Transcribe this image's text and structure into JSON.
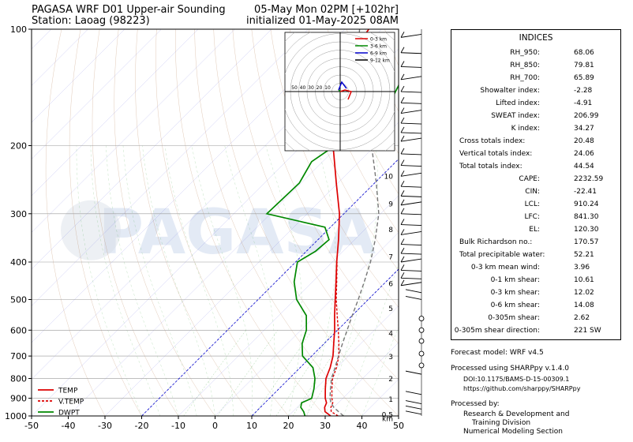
{
  "header": {
    "title_left_1": "PAGASA WRF D01 Upper-air Sounding",
    "title_left_2": "Station: Laoag (98223)",
    "title_right_1": "05-May Mon 02PM [+102hr]",
    "title_right_2": "initialized 01-May-2025 08AM"
  },
  "watermark": "PAGASA",
  "chart_data": {
    "type": "line",
    "xlabel": "",
    "ylabel": "",
    "xlim": [
      -50,
      50
    ],
    "ylim": [
      1000,
      100
    ],
    "yscale": "log",
    "x_ticks": [
      -50,
      -40,
      -30,
      -20,
      -10,
      0,
      10,
      20,
      30,
      40,
      50
    ],
    "y_ticks": [
      1000,
      900,
      800,
      700,
      600,
      500,
      400,
      300,
      200,
      100
    ],
    "height_km_labels": [
      "km",
      "0.5",
      "1",
      "2",
      "3",
      "4",
      "5",
      "6",
      "7",
      "8",
      "9",
      "10"
    ],
    "legend_position": "bottom-left",
    "series": [
      {
        "name": "TEMP",
        "color": "#dd0000",
        "style": "solid",
        "points": [
          [
            1000,
            31.5
          ],
          [
            975,
            28.8
          ],
          [
            950,
            27.5
          ],
          [
            925,
            26.8
          ],
          [
            900,
            25.2
          ],
          [
            850,
            22.6
          ],
          [
            800,
            20.0
          ],
          [
            750,
            18.2
          ],
          [
            700,
            15.8
          ],
          [
            650,
            12.6
          ],
          [
            600,
            9.2
          ],
          [
            550,
            5.2
          ],
          [
            500,
            1.0
          ],
          [
            450,
            -3.6
          ],
          [
            400,
            -8.8
          ],
          [
            350,
            -14.4
          ],
          [
            300,
            -21.2
          ],
          [
            250,
            -30.4
          ],
          [
            200,
            -41.5
          ],
          [
            175,
            -47.5
          ],
          [
            150,
            -54.5
          ],
          [
            125,
            -60.0
          ],
          [
            110,
            -62.0
          ],
          [
            100,
            -63.5
          ]
        ]
      },
      {
        "name": "V.TEMP",
        "color": "#dd0000",
        "style": "dashed",
        "points": [
          [
            1000,
            33.5
          ],
          [
            975,
            30.5
          ],
          [
            950,
            29.2
          ],
          [
            925,
            28.5
          ],
          [
            900,
            27.0
          ],
          [
            850,
            24.4
          ],
          [
            800,
            21.8
          ],
          [
            750,
            19.9
          ],
          [
            700,
            17.4
          ],
          [
            650,
            14.0
          ],
          [
            600,
            10.2
          ],
          [
            550,
            5.9
          ],
          [
            500,
            1.3
          ],
          [
            450,
            -3.4
          ],
          [
            400,
            -8.7
          ]
        ]
      },
      {
        "name": "DWPT",
        "color": "#008800",
        "style": "solid",
        "points": [
          [
            1000,
            24.5
          ],
          [
            975,
            23.0
          ],
          [
            950,
            21.0
          ],
          [
            925,
            20.0
          ],
          [
            900,
            21.5
          ],
          [
            850,
            19.5
          ],
          [
            800,
            17.0
          ],
          [
            750,
            13.5
          ],
          [
            700,
            7.5
          ],
          [
            650,
            4.0
          ],
          [
            600,
            1.5
          ],
          [
            550,
            -2.5
          ],
          [
            500,
            -9.5
          ],
          [
            450,
            -15.0
          ],
          [
            400,
            -19.5
          ],
          [
            375,
            -17.5
          ],
          [
            350,
            -17.0
          ],
          [
            325,
            -21.5
          ],
          [
            300,
            -41.0
          ],
          [
            250,
            -40.5
          ],
          [
            220,
            -43.0
          ],
          [
            200,
            -41.0
          ],
          [
            180,
            -35.0
          ],
          [
            160,
            -37.0
          ],
          [
            140,
            -40.0
          ],
          [
            125,
            -43.5
          ],
          [
            110,
            -43.5
          ],
          [
            100,
            -42.0
          ]
        ]
      },
      {
        "name": "",
        "color": "#777777",
        "style": "dashed",
        "points": [
          [
            1000,
            35.0
          ],
          [
            975,
            32.5
          ],
          [
            950,
            30.0
          ],
          [
            925,
            28.0
          ],
          [
            900,
            26.5
          ],
          [
            850,
            24.0
          ],
          [
            800,
            21.5
          ],
          [
            750,
            19.5
          ],
          [
            700,
            17.3
          ],
          [
            650,
            15.0
          ],
          [
            600,
            12.6
          ],
          [
            550,
            10.0
          ],
          [
            500,
            7.3
          ],
          [
            450,
            4.1
          ],
          [
            400,
            0.4
          ],
          [
            350,
            -4.4
          ],
          [
            300,
            -10.5
          ],
          [
            250,
            -19.5
          ],
          [
            200,
            -31.0
          ],
          [
            175,
            -38.0
          ],
          [
            150,
            -46.0
          ],
          [
            125,
            -56.0
          ],
          [
            110,
            -62.0
          ],
          [
            100,
            -66.0
          ]
        ]
      }
    ]
  },
  "hodograph": {
    "rings": [
      "50",
      "40",
      "30",
      "20",
      "10"
    ],
    "legend": [
      {
        "label": "0-3 km",
        "color": "#dd0000"
      },
      {
        "label": "3-6 km",
        "color": "#008800"
      },
      {
        "label": "6-9 km",
        "color": "#0000cc"
      },
      {
        "label": "9-12 km",
        "color": "#000000"
      }
    ]
  },
  "indices": {
    "title": "INDICES",
    "rows": [
      {
        "label": "RH_950:",
        "value": "68.06"
      },
      {
        "label": "RH_850:",
        "value": "79.81"
      },
      {
        "label": "RH_700:",
        "value": "65.89"
      },
      {
        "label": "Showalter index:",
        "value": "-2.28"
      },
      {
        "label": "Lifted index:",
        "value": "-4.91"
      },
      {
        "label": "SWEAT index:",
        "value": "206.99"
      },
      {
        "label": "K index:",
        "value": "34.27"
      },
      {
        "label": "Cross totals index:",
        "value": "20.48"
      },
      {
        "label": "Vertical totals index:",
        "value": "24.06"
      },
      {
        "label": "Total totals index:",
        "value": "44.54"
      },
      {
        "label": "CAPE:",
        "value": "2232.59"
      },
      {
        "label": "CIN:",
        "value": "-22.41"
      },
      {
        "label": "LCL:",
        "value": "910.24"
      },
      {
        "label": "LFC:",
        "value": "841.30"
      },
      {
        "label": "EL:",
        "value": "120.30"
      },
      {
        "label": "Bulk Richardson no.:",
        "value": "170.57"
      },
      {
        "label": "Total precipitable water:",
        "value": "52.21"
      },
      {
        "label": "0-3 km mean wind:",
        "value": "3.96"
      },
      {
        "label": "0-1 km shear:",
        "value": "10.61"
      },
      {
        "label": "0-3 km shear:",
        "value": "12.02"
      },
      {
        "label": "0-6 km shear:",
        "value": "14.08"
      },
      {
        "label": "0-305m shear:",
        "value": "2.62"
      },
      {
        "label": "0-305m shear direction:",
        "value": "221 SW"
      }
    ]
  },
  "footer": {
    "forecast_model": "Forecast model: WRF v4.5",
    "processed_using": "Processed using SHARPpy v.1.4.0",
    "doi": "DOI:10.1175/BAMS-D-15-00309.1",
    "url": "https://github.com/sharppy/SHARPpy",
    "processed_by": "Processed by:",
    "division_1": "Research & Development and",
    "division_2": "Training Division",
    "section": "Numerical Modeling Section"
  }
}
